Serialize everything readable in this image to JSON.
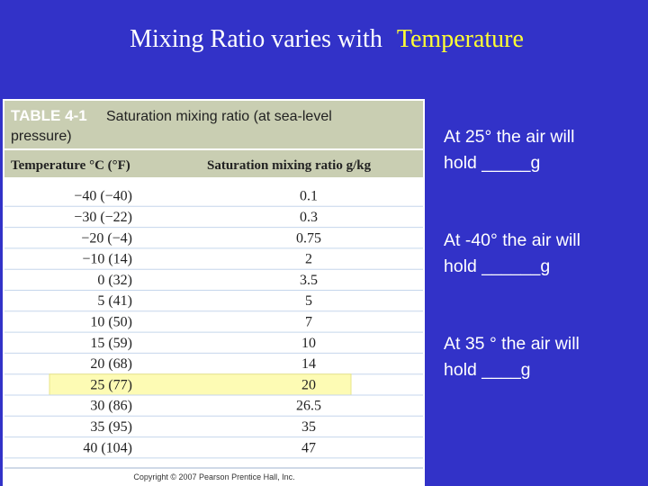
{
  "title": {
    "prefix": "Mixing Ratio varies with",
    "highlight": "Temperature"
  },
  "table": {
    "label": "TABLE 4-1",
    "caption_line1": "Saturation mixing ratio (at sea-level",
    "caption_line2": "pressure)",
    "headers": [
      "Temperature °C (°F)",
      "Saturation mixing ratio g/kg"
    ],
    "rows": [
      [
        "−40 (−40)",
        "0.1"
      ],
      [
        "−30 (−22)",
        "0.3"
      ],
      [
        "−20 (−4)",
        "0.75"
      ],
      [
        "−10 (14)",
        "2"
      ],
      [
        "0 (32)",
        "3.5"
      ],
      [
        "5 (41)",
        "5"
      ],
      [
        "10 (50)",
        "7"
      ],
      [
        "15 (59)",
        "10"
      ],
      [
        "20 (68)",
        "14"
      ],
      [
        "25 (77)",
        "20"
      ],
      [
        "30 (86)",
        "26.5"
      ],
      [
        "35 (95)",
        "35"
      ],
      [
        "40 (104)",
        "47"
      ]
    ],
    "highlighted_row": 9,
    "copyright": "Copyright © 2007 Pearson Prentice Hall, Inc."
  },
  "questions": [
    [
      "At 25° the air will",
      "hold _____g"
    ],
    [
      "At -40°  the air will",
      "hold ______g"
    ],
    [
      "At 35 ° the air will",
      "hold ____g"
    ]
  ]
}
